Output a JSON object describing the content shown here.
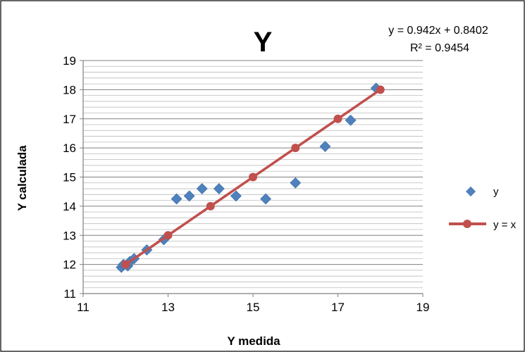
{
  "chart_data": {
    "type": "scatter",
    "title": "Y",
    "xlabel": "Y medida",
    "ylabel": "Y calculada",
    "xlim": [
      11,
      19
    ],
    "ylim": [
      11,
      19
    ],
    "x_ticks": [
      11,
      13,
      15,
      17,
      19
    ],
    "y_ticks": [
      11,
      12,
      13,
      14,
      15,
      16,
      17,
      18,
      19
    ],
    "grid": "horizontal minor lines",
    "legend_position": "right",
    "trendline": {
      "equation": "y = 0.942x + 0.8402",
      "r_squared": "R² = 0.9454"
    },
    "series": [
      {
        "name": "y",
        "kind": "scatter",
        "marker": "diamond",
        "color": "#4F81BD",
        "points": [
          {
            "x": 11.9,
            "y": 11.9
          },
          {
            "x": 11.95,
            "y": 12.0
          },
          {
            "x": 12.05,
            "y": 11.95
          },
          {
            "x": 12.1,
            "y": 12.1
          },
          {
            "x": 12.2,
            "y": 12.2
          },
          {
            "x": 12.5,
            "y": 12.5
          },
          {
            "x": 12.9,
            "y": 12.85
          },
          {
            "x": 13.2,
            "y": 14.25
          },
          {
            "x": 13.5,
            "y": 14.35
          },
          {
            "x": 13.8,
            "y": 14.6
          },
          {
            "x": 14.2,
            "y": 14.6
          },
          {
            "x": 14.6,
            "y": 14.35
          },
          {
            "x": 15.3,
            "y": 14.25
          },
          {
            "x": 16.0,
            "y": 14.8
          },
          {
            "x": 16.7,
            "y": 16.05
          },
          {
            "x": 17.3,
            "y": 16.95
          },
          {
            "x": 17.9,
            "y": 18.05
          }
        ]
      },
      {
        "name": "y = x",
        "kind": "line",
        "marker": "circle",
        "color": "#C0504D",
        "points": [
          {
            "x": 12,
            "y": 12
          },
          {
            "x": 13,
            "y": 13
          },
          {
            "x": 14,
            "y": 14
          },
          {
            "x": 15,
            "y": 15
          },
          {
            "x": 16,
            "y": 16
          },
          {
            "x": 17,
            "y": 17
          },
          {
            "x": 18,
            "y": 18
          }
        ]
      }
    ]
  }
}
